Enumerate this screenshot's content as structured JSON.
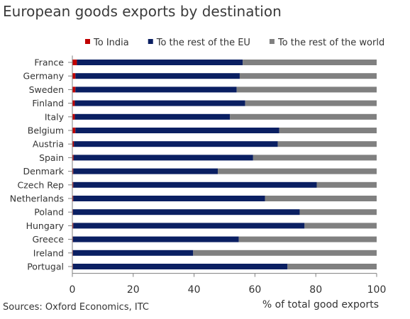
{
  "chart_data": {
    "type": "bar",
    "orientation": "horizontal",
    "stacked": true,
    "title": "European goods exports by destination",
    "xlabel": "% of total good exports",
    "ylabel": "",
    "xlim": [
      0,
      100
    ],
    "xticks": [
      0,
      20,
      40,
      60,
      80,
      100
    ],
    "grid": false,
    "legend_position": "top",
    "categories": [
      "France",
      "Germany",
      "Sweden",
      "Finland",
      "Italy",
      "Belgium",
      "Austria",
      "Spain",
      "Denmark",
      "Czech Rep",
      "Netherlands",
      "Poland",
      "Hungary",
      "Greece",
      "Ireland",
      "Portugal"
    ],
    "series": [
      {
        "name": "To India",
        "color": "#c00000",
        "values": [
          1.5,
          1.0,
          1.0,
          0.8,
          0.8,
          1.0,
          0.5,
          0.4,
          0.3,
          0.3,
          0.3,
          0.2,
          0.3,
          0.2,
          0.2,
          0.2
        ]
      },
      {
        "name": "To the rest of the EU",
        "color": "#0a1f62",
        "values": [
          54.5,
          54.0,
          53.0,
          56.0,
          51.0,
          67.0,
          67.0,
          59.0,
          47.5,
          80.0,
          63.0,
          74.5,
          76.0,
          54.5,
          39.5,
          70.5
        ]
      },
      {
        "name": "To the rest of the world",
        "color": "#808080",
        "values": [
          44.0,
          45.0,
          46.0,
          43.2,
          48.2,
          32.0,
          32.5,
          40.6,
          52.2,
          19.7,
          36.7,
          25.3,
          23.7,
          45.3,
          60.3,
          29.3
        ]
      }
    ],
    "source": "Sources: Oxford Economics, ITC"
  }
}
